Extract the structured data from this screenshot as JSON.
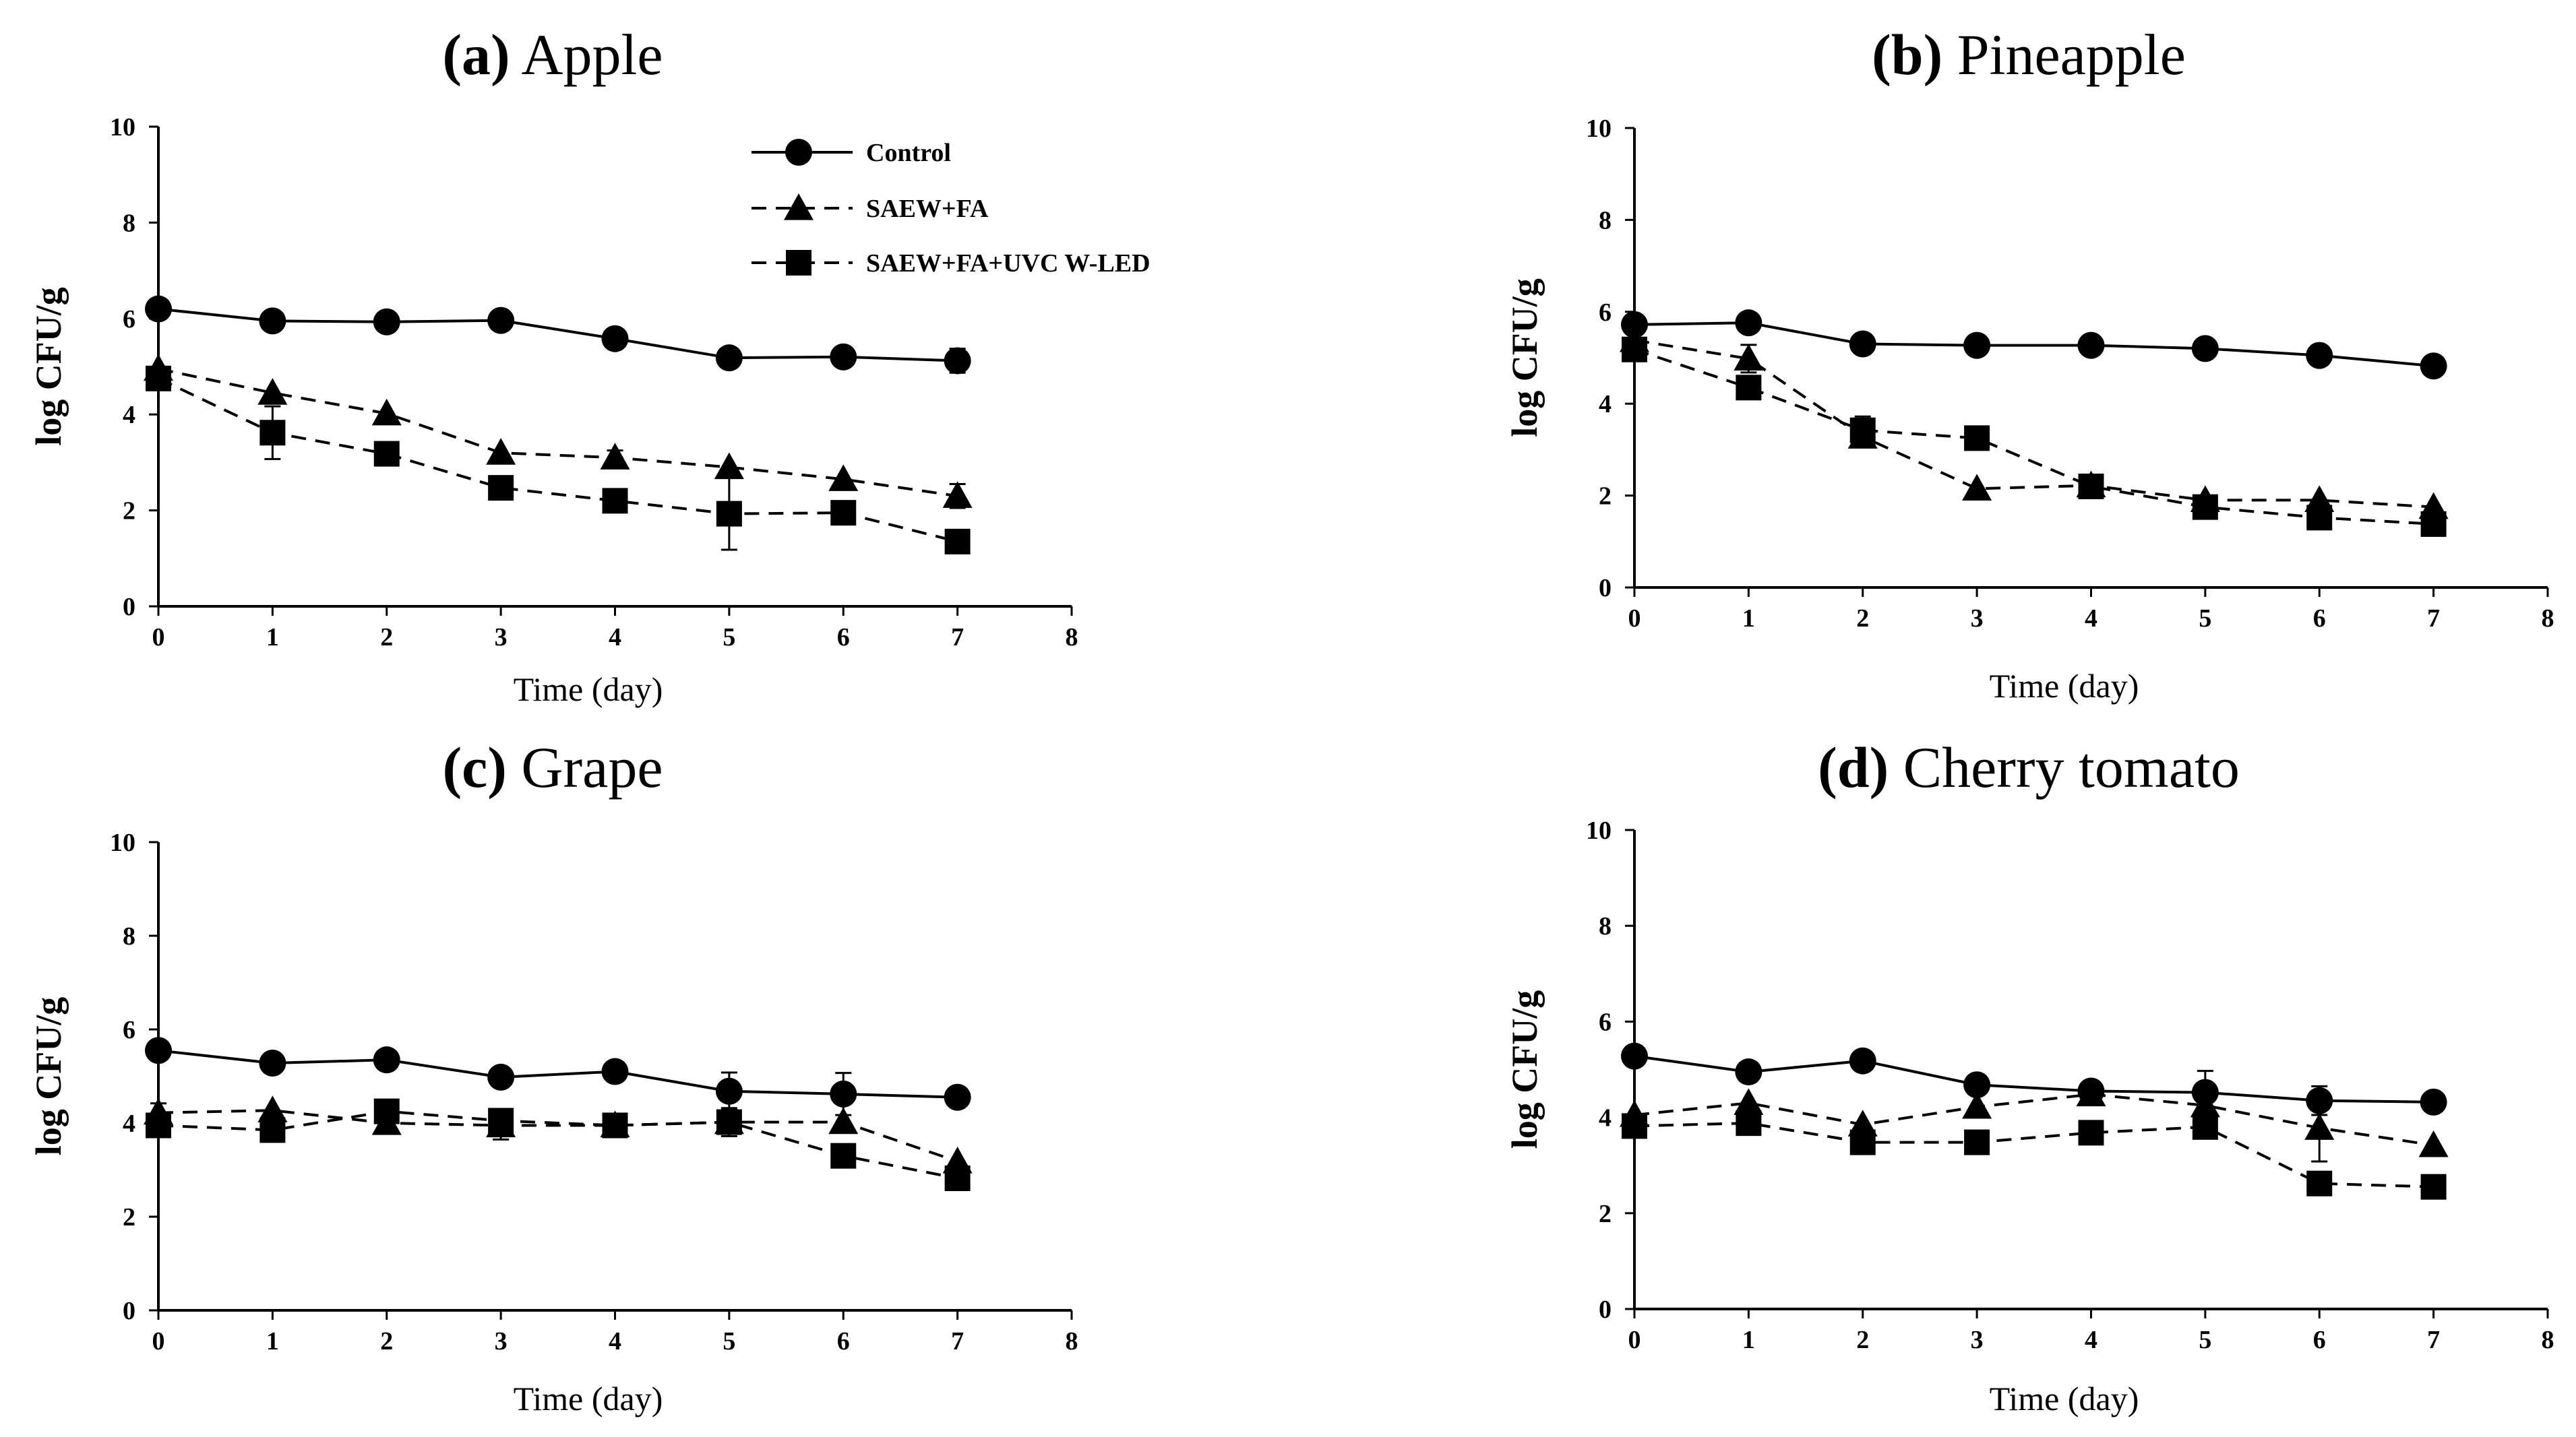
{
  "chart_data": [
    {
      "type": "line",
      "title": "Apple",
      "panel_tag": "(a)",
      "xlabel": "Time (day)",
      "ylabel": "log CFU/g",
      "xlim": [
        0,
        8
      ],
      "ylim": [
        0,
        10
      ],
      "xticks": [
        "0",
        "1",
        "2",
        "3",
        "4",
        "5",
        "6",
        "7",
        "8"
      ],
      "yticks": [
        "0",
        "2",
        "4",
        "6",
        "8",
        "10"
      ],
      "grid": false,
      "legend": "top-right",
      "x": [
        0,
        1,
        2,
        3,
        4,
        5,
        6,
        7
      ],
      "series": [
        {
          "name": "Control",
          "marker": "circle",
          "dash": "solid",
          "values": [
            6.2,
            5.95,
            5.93,
            5.96,
            5.58,
            5.18,
            5.2,
            5.12
          ],
          "errors": [
            0,
            0,
            0,
            0,
            0,
            0.2,
            0,
            0.25
          ]
        },
        {
          "name": "SAEW+FA",
          "marker": "triangle",
          "dash": "dashed",
          "values": [
            4.95,
            4.45,
            4.02,
            3.2,
            3.1,
            2.9,
            2.65,
            2.3
          ],
          "errors": [
            0,
            0,
            0,
            0,
            0.15,
            0,
            0,
            0.25
          ]
        },
        {
          "name": "SAEW+FA+UVC W-LED",
          "marker": "square",
          "dash": "dashed",
          "values": [
            4.75,
            3.62,
            3.18,
            2.47,
            2.2,
            1.93,
            1.95,
            1.35
          ],
          "errors": [
            0,
            0.55,
            0,
            0,
            0,
            0.75,
            0,
            0
          ]
        }
      ]
    },
    {
      "type": "line",
      "title": "Pineapple",
      "panel_tag": "(b)",
      "xlabel": "Time (day)",
      "ylabel": "log CFU/g",
      "xlim": [
        0,
        8
      ],
      "ylim": [
        0,
        10
      ],
      "xticks": [
        "0",
        "1",
        "2",
        "3",
        "4",
        "5",
        "6",
        "7",
        "8"
      ],
      "yticks": [
        "0",
        "2",
        "4",
        "6",
        "8",
        "10"
      ],
      "grid": false,
      "x": [
        0,
        1,
        2,
        3,
        4,
        5,
        6,
        7
      ],
      "series": [
        {
          "name": "Control",
          "marker": "circle",
          "dash": "solid",
          "values": [
            5.72,
            5.76,
            5.3,
            5.27,
            5.27,
            5.2,
            5.05,
            4.82
          ],
          "errors": [
            0,
            0,
            0,
            0,
            0,
            0,
            0,
            0
          ]
        },
        {
          "name": "SAEW+FA",
          "marker": "triangle",
          "dash": "dashed",
          "values": [
            5.38,
            4.98,
            3.28,
            2.15,
            2.22,
            1.9,
            1.9,
            1.75
          ],
          "errors": [
            0,
            0.3,
            0.2,
            0,
            0,
            0,
            0,
            0
          ]
        },
        {
          "name": "SAEW+FA+UVC W-LED",
          "marker": "square",
          "dash": "dashed",
          "values": [
            5.18,
            4.35,
            3.42,
            3.25,
            2.2,
            1.75,
            1.52,
            1.38
          ],
          "errors": [
            0,
            0,
            0.3,
            0,
            0,
            0,
            0,
            0
          ]
        }
      ]
    },
    {
      "type": "line",
      "title": "Grape",
      "panel_tag": "(c)",
      "xlabel": "Time (day)",
      "ylabel": "log CFU/g",
      "xlim": [
        0,
        8
      ],
      "ylim": [
        0,
        10
      ],
      "xticks": [
        "0",
        "1",
        "2",
        "3",
        "4",
        "5",
        "6",
        "7",
        "8"
      ],
      "yticks": [
        "0",
        "2",
        "4",
        "6",
        "8",
        "10"
      ],
      "grid": false,
      "x": [
        0,
        1,
        2,
        3,
        4,
        5,
        6,
        7
      ],
      "series": [
        {
          "name": "Control",
          "marker": "circle",
          "dash": "solid",
          "values": [
            5.55,
            5.28,
            5.35,
            4.98,
            5.1,
            4.68,
            4.62,
            4.55
          ],
          "errors": [
            0,
            0,
            0,
            0.15,
            0,
            0.4,
            0.45,
            0
          ]
        },
        {
          "name": "SAEW+FA",
          "marker": "triangle",
          "dash": "dashed",
          "values": [
            4.22,
            4.27,
            4.0,
            3.95,
            3.95,
            4.02,
            4.02,
            3.18
          ],
          "errors": [
            0.2,
            0,
            0.22,
            0.3,
            0,
            0.3,
            0,
            0
          ]
        },
        {
          "name": "SAEW+FA+UVC W-LED",
          "marker": "square",
          "dash": "dashed",
          "values": [
            3.95,
            3.85,
            4.25,
            4.05,
            3.95,
            4.02,
            3.3,
            2.82
          ],
          "errors": [
            0,
            0,
            0,
            0,
            0,
            0,
            0,
            0.2
          ]
        }
      ]
    },
    {
      "type": "line",
      "title": "Cherry tomato",
      "panel_tag": "(d)",
      "xlabel": "Time (day)",
      "ylabel": "log CFU/g",
      "xlim": [
        0,
        8
      ],
      "ylim": [
        0,
        10
      ],
      "xticks": [
        "0",
        "1",
        "2",
        "3",
        "4",
        "5",
        "6",
        "7",
        "8"
      ],
      "yticks": [
        "0",
        "2",
        "4",
        "6",
        "8",
        "10"
      ],
      "grid": false,
      "x": [
        0,
        1,
        2,
        3,
        4,
        5,
        6,
        7
      ],
      "series": [
        {
          "name": "Control",
          "marker": "circle",
          "dash": "solid",
          "values": [
            5.28,
            4.95,
            5.18,
            4.68,
            4.55,
            4.52,
            4.35,
            4.32
          ],
          "errors": [
            0,
            0,
            0,
            0,
            0.2,
            0.45,
            0.3,
            0
          ]
        },
        {
          "name": "SAEW+FA",
          "marker": "triangle",
          "dash": "dashed",
          "values": [
            4.05,
            4.3,
            3.85,
            4.22,
            4.48,
            4.25,
            3.78,
            3.42
          ],
          "errors": [
            0,
            0,
            0,
            0,
            0.2,
            0,
            0.7,
            0
          ]
        },
        {
          "name": "SAEW+FA+UVC W-LED",
          "marker": "square",
          "dash": "dashed",
          "values": [
            3.82,
            3.88,
            3.48,
            3.48,
            3.68,
            3.8,
            2.62,
            2.55
          ],
          "errors": [
            0,
            0,
            0.15,
            0,
            0,
            0,
            0,
            0
          ]
        }
      ]
    }
  ],
  "legend": {
    "entries": [
      {
        "label": "Control",
        "marker": "circle",
        "dash": "solid"
      },
      {
        "label": "SAEW+FA",
        "marker": "triangle",
        "dash": "dashed"
      },
      {
        "label": "SAEW+FA+UVC W-LED",
        "marker": "square",
        "dash": "dashed"
      }
    ]
  }
}
